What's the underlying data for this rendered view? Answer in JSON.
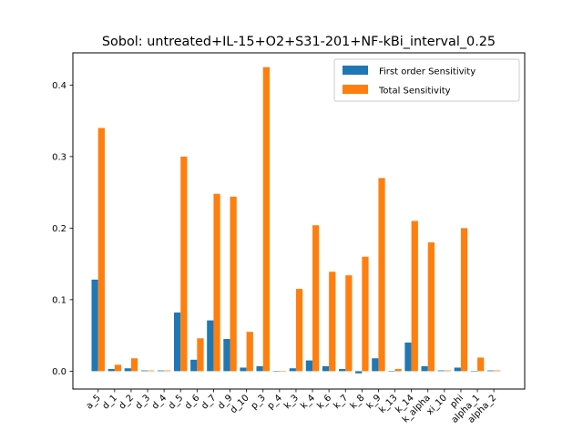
{
  "chart_data": {
    "type": "bar",
    "title": "Sobol: untreated+IL-15+O2+S31-201+NF-kBi_interval_0.25",
    "xlabel": "",
    "ylabel": "",
    "ylim": [
      -0.025,
      0.445
    ],
    "yticks": [
      0.0,
      0.1,
      0.2,
      0.3,
      0.4
    ],
    "ytick_labels": [
      "0.0",
      "0.1",
      "0.2",
      "0.3",
      "0.4"
    ],
    "grid": false,
    "legend_position": "top-right",
    "categories": [
      "a_5",
      "d_1",
      "d_2",
      "d_3",
      "d_4",
      "d_5",
      "d_6",
      "d_7",
      "d_9",
      "d_10",
      "p_3",
      "p_4",
      "k_3",
      "k_4",
      "k_6",
      "k_7",
      "k_8",
      "k_9",
      "k_13",
      "k_14",
      "k_alpha",
      "xi_10",
      "phi",
      "alpha_1",
      "alpha_2"
    ],
    "series": [
      {
        "name": "First order Sensitivity",
        "color": "#1f77b4",
        "values": [
          0.128,
          0.003,
          0.004,
          0.001,
          0.001,
          0.082,
          0.016,
          0.071,
          0.045,
          0.005,
          0.007,
          0.0,
          0.004,
          0.015,
          0.007,
          0.003,
          -0.003,
          0.018,
          0.0,
          0.04,
          0.007,
          0.001,
          0.005,
          0.0,
          0.001
        ]
      },
      {
        "name": "Total Sensitivity",
        "color": "#ff7f0e",
        "values": [
          0.34,
          0.009,
          0.018,
          0.001,
          0.001,
          0.3,
          0.046,
          0.248,
          0.244,
          0.055,
          0.425,
          0.0,
          0.115,
          0.204,
          0.139,
          0.134,
          0.16,
          0.27,
          0.003,
          0.21,
          0.18,
          0.001,
          0.2,
          0.019,
          0.001
        ]
      }
    ]
  }
}
